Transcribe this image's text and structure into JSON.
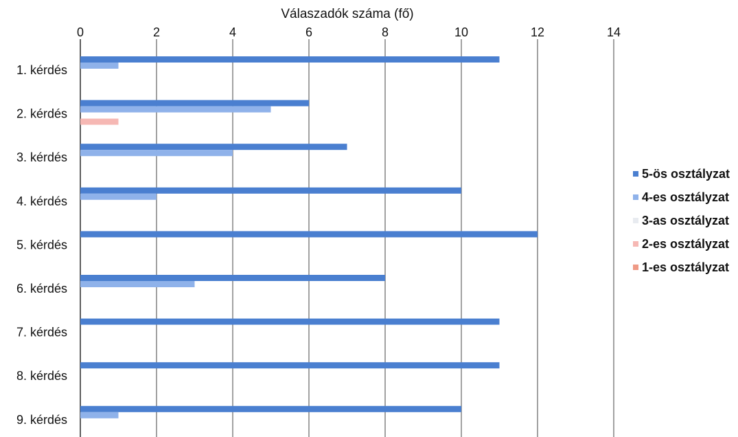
{
  "chart_data": {
    "type": "bar",
    "orientation": "horizontal",
    "title": "",
    "xlabel": "Válaszadók száma (fő)",
    "ylabel": "",
    "xlim": [
      0,
      14
    ],
    "x_ticks": [
      "0",
      "2",
      "4",
      "6",
      "8",
      "10",
      "12",
      "14"
    ],
    "categories": [
      "1. kérdés",
      "2. kérdés",
      "3. kérdés",
      "4. kérdés",
      "5. kérdés",
      "6. kérdés",
      "7. kérdés",
      "8. kérdés",
      "9. kérdés"
    ],
    "series": [
      {
        "name": "5-ös osztályzat",
        "color": "#4a7fd0",
        "values": [
          11,
          6,
          7,
          10,
          12,
          8,
          11,
          11,
          10
        ]
      },
      {
        "name": "4-es osztályzat",
        "color": "#8fb2ea",
        "values": [
          1,
          5,
          4,
          2,
          0,
          3,
          0,
          0,
          1
        ]
      },
      {
        "name": "3-as osztályzat",
        "color": "#e8ebf0",
        "values": [
          0,
          0,
          0,
          0,
          0,
          0,
          0,
          0,
          0
        ]
      },
      {
        "name": "2-es osztályzat",
        "color": "#f6b8b4",
        "values": [
          0,
          1,
          0,
          0,
          0,
          0,
          0,
          0,
          0
        ]
      },
      {
        "name": "1-es osztályzat",
        "color": "#ef9a86",
        "values": [
          0,
          0,
          0,
          0,
          0,
          0,
          0,
          0,
          0
        ]
      }
    ],
    "grid": true,
    "legend_position": "right"
  }
}
